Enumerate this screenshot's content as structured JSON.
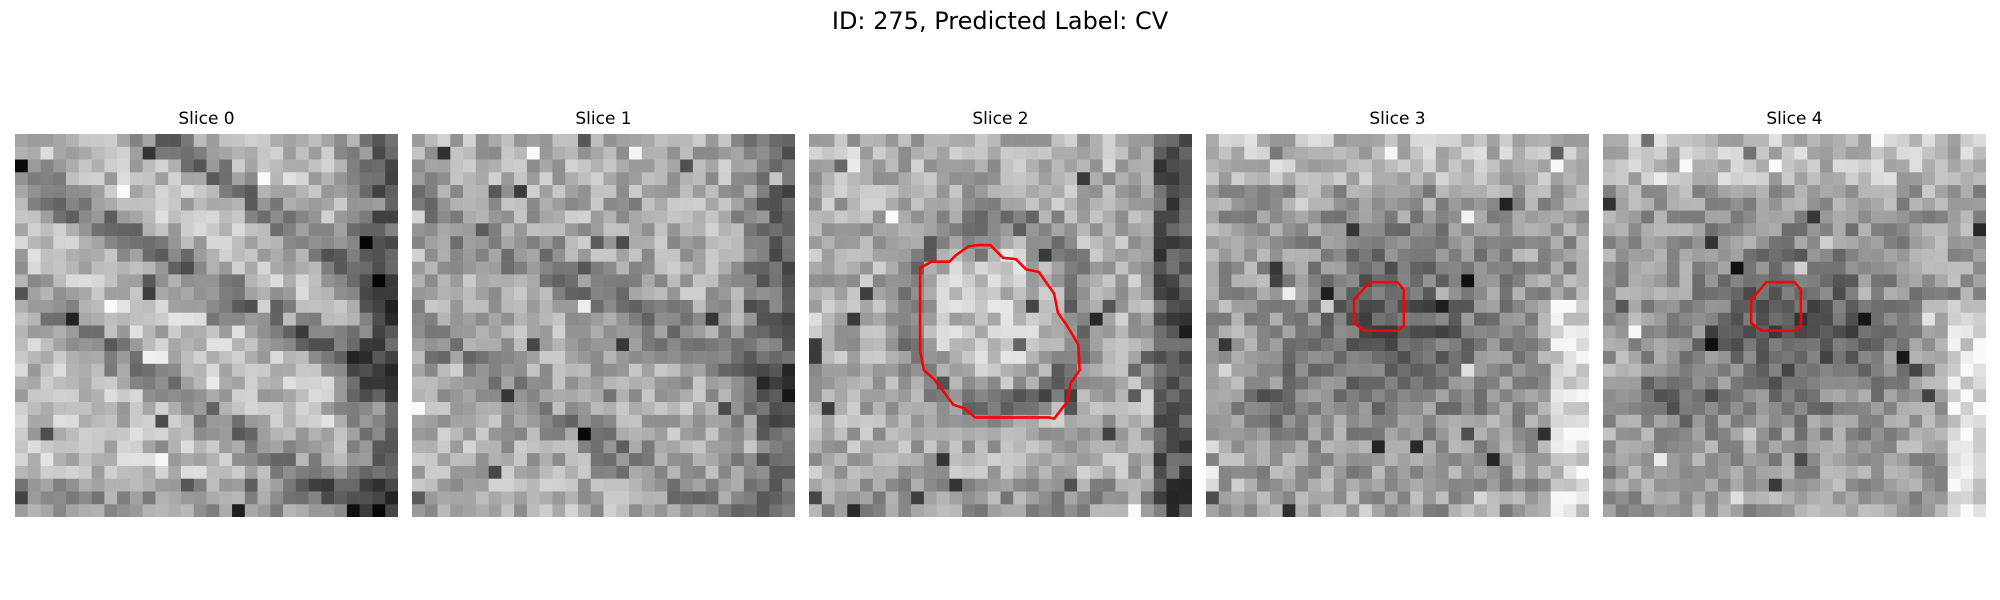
{
  "figure": {
    "title": "ID: 275, Predicted Label: CV"
  },
  "panels": [
    {
      "title": "Slice 0",
      "seed": 11,
      "variant": "ridges",
      "contour": "none"
    },
    {
      "title": "Slice 1",
      "seed": 27,
      "variant": "texture",
      "contour": "none"
    },
    {
      "title": "Slice 2",
      "seed": 43,
      "variant": "blob",
      "contour": "large"
    },
    {
      "title": "Slice 3",
      "seed": 59,
      "variant": "dark-center",
      "contour": "small"
    },
    {
      "title": "Slice 4",
      "seed": 71,
      "variant": "dark-center",
      "contour": "small"
    }
  ],
  "colors": {
    "contour": "#ff0000",
    "background": "#ffffff"
  }
}
